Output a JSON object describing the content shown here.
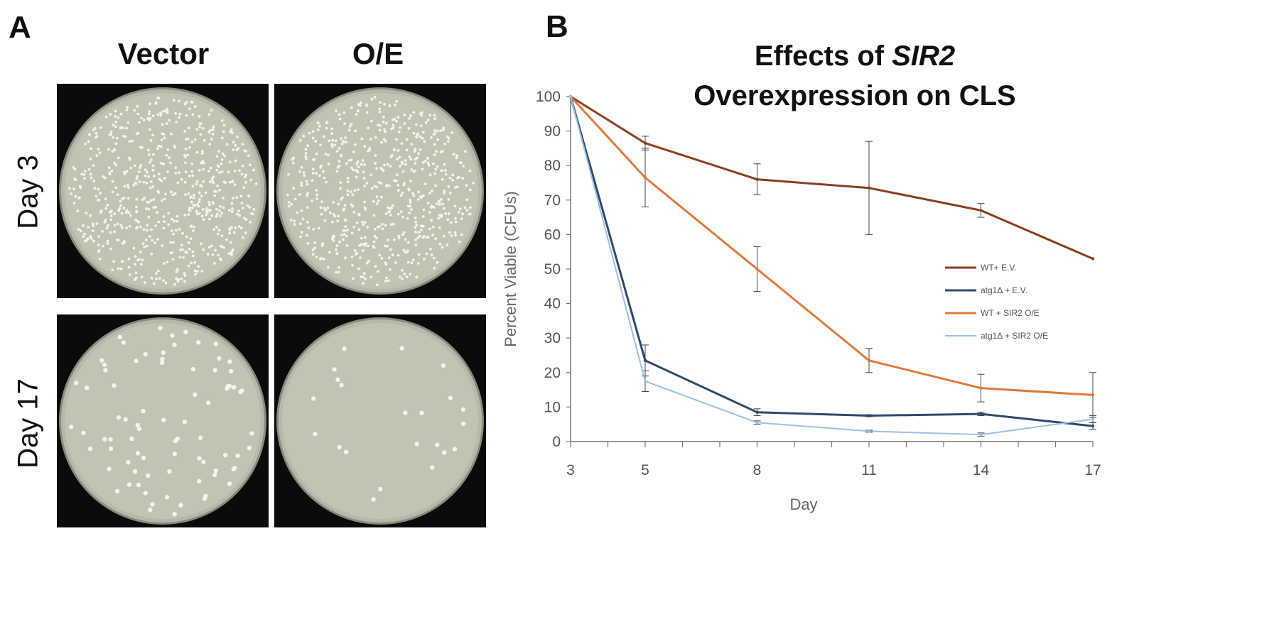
{
  "panel_a": {
    "letter": "A",
    "col_headers": [
      "Vector",
      "O/E"
    ],
    "row_headers": [
      "Day 3",
      "Day 17"
    ],
    "plates": [
      {
        "name": "plate-day3-vector",
        "colony_count": 620
      },
      {
        "name": "plate-day3-oe",
        "colony_count": 600
      },
      {
        "name": "plate-day17-vector",
        "colony_count": 80
      },
      {
        "name": "plate-day17-oe",
        "colony_count": 22
      }
    ]
  },
  "panel_b": {
    "letter": "B",
    "title_pre": "Effects of ",
    "title_italic": "SIR2",
    "title_line2": "Overexpression on CLS"
  },
  "chart_data": {
    "type": "line",
    "title": "Effects of SIR2 Overexpression on CLS",
    "xlabel": "Day",
    "ylabel": "Percent Viable (CFUs)",
    "x": [
      3,
      5,
      8,
      11,
      14,
      17
    ],
    "xlim": [
      3,
      17
    ],
    "ylim": [
      0,
      100
    ],
    "yticks": [
      0,
      10,
      20,
      30,
      40,
      50,
      60,
      70,
      80,
      90,
      100
    ],
    "xticks": [
      3,
      5,
      8,
      11,
      14,
      17
    ],
    "grid": false,
    "legend_position": "right",
    "series": [
      {
        "name": "WT+ E.V.",
        "color": "#8b3f22",
        "values": [
          100,
          86.5,
          76,
          73.5,
          67,
          53
        ],
        "errors": [
          0,
          2,
          4.5,
          13.5,
          2,
          0
        ]
      },
      {
        "name": "atg1Δ + E.V.",
        "color": "#2e4a6e",
        "values": [
          100,
          23.5,
          8.5,
          7.5,
          8,
          4.5
        ],
        "errors": [
          0,
          4.5,
          1,
          0.3,
          0.5,
          1
        ]
      },
      {
        "name": "WT + SIR2 O/E",
        "color": "#e07a3c",
        "values": [
          100,
          76.5,
          50,
          23.5,
          15.5,
          13.5
        ],
        "errors": [
          0,
          8.5,
          6.5,
          3.5,
          4,
          6.5
        ]
      },
      {
        "name": "atg1Δ + SIR2 O/E",
        "color": "#9cc0e6",
        "values": [
          100,
          17.5,
          5.5,
          3,
          2,
          6.5
        ],
        "errors": [
          0,
          3,
          0.5,
          0.3,
          0.5,
          1
        ]
      }
    ]
  }
}
